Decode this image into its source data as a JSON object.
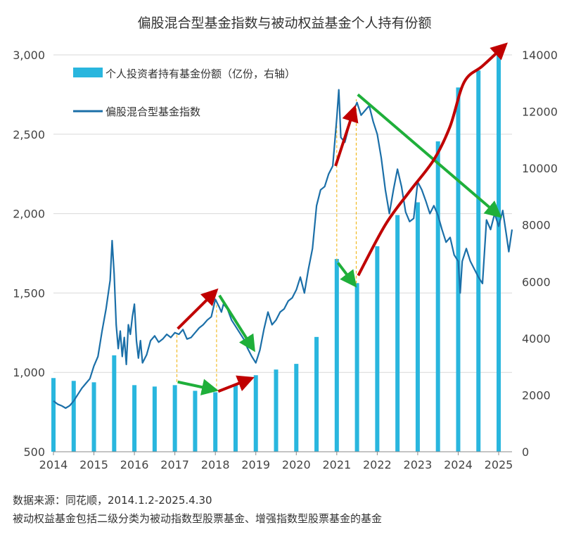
{
  "chart_data": {
    "type": "bar+line",
    "title": "偏股混合型基金指数与被动权益基金个人持有份额",
    "legend": {
      "bar_label": "个人投资者持有基金份额（亿份，右轴）",
      "line_label": "偏股混合型基金指数",
      "position": "top-left"
    },
    "left_axis": {
      "ticks": [
        "500",
        "1,000",
        "1,500",
        "2,000",
        "2,500",
        "3,000"
      ],
      "ylim": [
        500,
        3000
      ]
    },
    "right_axis": {
      "ticks": [
        "0",
        "2000",
        "4000",
        "6000",
        "8000",
        "10000",
        "12000",
        "14000"
      ],
      "ylim": [
        0,
        14000
      ]
    },
    "x_axis": {
      "ticks": [
        "2014",
        "2015",
        "2016",
        "2017",
        "2018",
        "2019",
        "2020",
        "2021",
        "2022",
        "2023",
        "2024",
        "2025"
      ],
      "xlim": [
        2014.0,
        2025.33
      ]
    },
    "colors": {
      "bar": "#29B6DE",
      "line": "#1B6FA8",
      "red_arrow": "#C00000",
      "green_arrow": "#1FAF3A",
      "guide": "#F0B000"
    },
    "series": [
      {
        "name": "个人投资者持有基金份额（亿份，右轴）",
        "type": "bar",
        "axis": "right",
        "points": [
          [
            2014.0,
            2600
          ],
          [
            2014.5,
            2500
          ],
          [
            2015.0,
            2450
          ],
          [
            2015.5,
            3400
          ],
          [
            2016.0,
            2350
          ],
          [
            2016.5,
            2300
          ],
          [
            2017.0,
            2350
          ],
          [
            2017.5,
            2150
          ],
          [
            2018.0,
            2100
          ],
          [
            2018.5,
            2350
          ],
          [
            2019.0,
            2700
          ],
          [
            2019.5,
            2900
          ],
          [
            2020.0,
            3100
          ],
          [
            2020.5,
            4050
          ],
          [
            2021.0,
            6800
          ],
          [
            2021.5,
            5950
          ],
          [
            2022.0,
            7250
          ],
          [
            2022.5,
            8350
          ],
          [
            2023.0,
            8800
          ],
          [
            2023.5,
            10950
          ],
          [
            2024.0,
            12850
          ],
          [
            2024.5,
            13450
          ],
          [
            2025.0,
            14000
          ]
        ]
      },
      {
        "name": "偏股混合型基金指数",
        "type": "line",
        "axis": "left",
        "points": [
          [
            2014.0,
            820
          ],
          [
            2014.1,
            800
          ],
          [
            2014.2,
            790
          ],
          [
            2014.3,
            775
          ],
          [
            2014.4,
            790
          ],
          [
            2014.5,
            820
          ],
          [
            2014.6,
            860
          ],
          [
            2014.7,
            900
          ],
          [
            2014.8,
            930
          ],
          [
            2014.9,
            960
          ],
          [
            2015.0,
            1040
          ],
          [
            2015.1,
            1100
          ],
          [
            2015.2,
            1260
          ],
          [
            2015.3,
            1400
          ],
          [
            2015.4,
            1580
          ],
          [
            2015.45,
            1830
          ],
          [
            2015.5,
            1620
          ],
          [
            2015.55,
            1300
          ],
          [
            2015.6,
            1150
          ],
          [
            2015.65,
            1260
          ],
          [
            2015.7,
            1100
          ],
          [
            2015.75,
            1220
          ],
          [
            2015.8,
            1050
          ],
          [
            2015.85,
            1300
          ],
          [
            2015.9,
            1240
          ],
          [
            2015.95,
            1350
          ],
          [
            2016.0,
            1430
          ],
          [
            2016.05,
            1200
          ],
          [
            2016.1,
            1090
          ],
          [
            2016.15,
            1200
          ],
          [
            2016.2,
            1060
          ],
          [
            2016.3,
            1110
          ],
          [
            2016.4,
            1200
          ],
          [
            2016.5,
            1230
          ],
          [
            2016.6,
            1190
          ],
          [
            2016.7,
            1210
          ],
          [
            2016.8,
            1240
          ],
          [
            2016.9,
            1220
          ],
          [
            2017.0,
            1250
          ],
          [
            2017.1,
            1240
          ],
          [
            2017.2,
            1270
          ],
          [
            2017.3,
            1210
          ],
          [
            2017.4,
            1220
          ],
          [
            2017.5,
            1250
          ],
          [
            2017.6,
            1280
          ],
          [
            2017.7,
            1300
          ],
          [
            2017.8,
            1330
          ],
          [
            2017.9,
            1350
          ],
          [
            2018.0,
            1460
          ],
          [
            2018.1,
            1410
          ],
          [
            2018.15,
            1380
          ],
          [
            2018.2,
            1430
          ],
          [
            2018.3,
            1400
          ],
          [
            2018.4,
            1330
          ],
          [
            2018.5,
            1290
          ],
          [
            2018.6,
            1250
          ],
          [
            2018.7,
            1210
          ],
          [
            2018.8,
            1150
          ],
          [
            2018.9,
            1100
          ],
          [
            2019.0,
            1060
          ],
          [
            2019.1,
            1140
          ],
          [
            2019.2,
            1270
          ],
          [
            2019.3,
            1380
          ],
          [
            2019.4,
            1300
          ],
          [
            2019.5,
            1330
          ],
          [
            2019.6,
            1380
          ],
          [
            2019.7,
            1400
          ],
          [
            2019.8,
            1450
          ],
          [
            2019.9,
            1470
          ],
          [
            2020.0,
            1520
          ],
          [
            2020.1,
            1600
          ],
          [
            2020.2,
            1500
          ],
          [
            2020.3,
            1650
          ],
          [
            2020.4,
            1780
          ],
          [
            2020.5,
            2050
          ],
          [
            2020.6,
            2150
          ],
          [
            2020.7,
            2170
          ],
          [
            2020.8,
            2250
          ],
          [
            2020.9,
            2300
          ],
          [
            2021.0,
            2600
          ],
          [
            2021.05,
            2780
          ],
          [
            2021.1,
            2480
          ],
          [
            2021.2,
            2450
          ],
          [
            2021.3,
            2550
          ],
          [
            2021.4,
            2640
          ],
          [
            2021.5,
            2700
          ],
          [
            2021.6,
            2620
          ],
          [
            2021.7,
            2650
          ],
          [
            2021.8,
            2680
          ],
          [
            2021.9,
            2580
          ],
          [
            2022.0,
            2500
          ],
          [
            2022.1,
            2350
          ],
          [
            2022.2,
            2150
          ],
          [
            2022.3,
            2000
          ],
          [
            2022.4,
            2150
          ],
          [
            2022.5,
            2280
          ],
          [
            2022.6,
            2170
          ],
          [
            2022.7,
            2010
          ],
          [
            2022.8,
            1950
          ],
          [
            2022.9,
            1970
          ],
          [
            2023.0,
            2200
          ],
          [
            2023.1,
            2150
          ],
          [
            2023.2,
            2080
          ],
          [
            2023.3,
            2000
          ],
          [
            2023.4,
            2050
          ],
          [
            2023.5,
            1990
          ],
          [
            2023.6,
            1900
          ],
          [
            2023.7,
            1820
          ],
          [
            2023.8,
            1850
          ],
          [
            2023.9,
            1740
          ],
          [
            2024.0,
            1700
          ],
          [
            2024.05,
            1500
          ],
          [
            2024.1,
            1700
          ],
          [
            2024.2,
            1780
          ],
          [
            2024.3,
            1700
          ],
          [
            2024.4,
            1650
          ],
          [
            2024.5,
            1600
          ],
          [
            2024.6,
            1560
          ],
          [
            2024.7,
            1960
          ],
          [
            2024.8,
            1900
          ],
          [
            2024.9,
            2000
          ],
          [
            2025.0,
            1920
          ],
          [
            2025.1,
            2020
          ],
          [
            2025.2,
            1850
          ],
          [
            2025.25,
            1760
          ],
          [
            2025.33,
            1900
          ]
        ]
      }
    ],
    "annotations": {
      "red_arrows": [
        {
          "from": [
            2017.07,
            1275
          ],
          "to": [
            2018.0,
            1510
          ]
        },
        {
          "from": [
            2018.07,
            880
          ],
          "to": [
            2018.87,
            960
          ]
        },
        {
          "from": [
            2020.97,
            2300
          ],
          "to": [
            2021.43,
            2660
          ]
        }
      ],
      "green_arrows": [
        {
          "from": [
            2018.1,
            1485
          ],
          "to": [
            2018.93,
            1150
          ]
        },
        {
          "from": [
            2017.07,
            940
          ],
          "to": [
            2017.98,
            890
          ]
        },
        {
          "from": [
            2021.03,
            1690
          ],
          "to": [
            2021.43,
            1555
          ]
        },
        {
          "from": [
            2021.52,
            2750
          ],
          "to": [
            2025.0,
            1990
          ]
        }
      ],
      "red_curves": [
        {
          "from": [
            2021.53,
            1610
          ],
          "to": [
            2025.15,
            3060
          ],
          "via": [
            [
              2022.2,
              1930
            ],
            [
              2022.8,
              2140
            ],
            [
              2023.4,
              2340
            ],
            [
              2023.8,
              2550
            ],
            [
              2024.15,
              2830
            ],
            [
              2024.6,
              2930
            ]
          ]
        }
      ],
      "guides": [
        {
          "x": 2017.05,
          "y": [
            940,
            1250
          ]
        },
        {
          "x": 2018.03,
          "y": [
            880,
            1470
          ]
        },
        {
          "x": 2021.0,
          "y": [
            1700,
            2560
          ]
        },
        {
          "x": 2021.48,
          "y": [
            1560,
            2720
          ]
        }
      ]
    }
  },
  "footer": {
    "source": "数据来源：同花顺，2014.1.2-2025.4.30",
    "note": "被动权益基金包括二级分类为被动指数型股票基金、增强指数型股票基金的基金"
  }
}
